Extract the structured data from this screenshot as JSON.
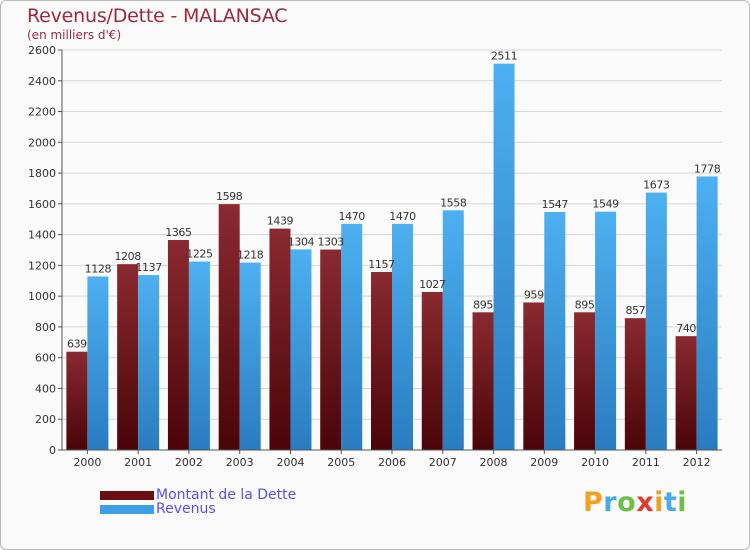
{
  "chart_data": {
    "type": "bar",
    "title": "Revenus/Dette - MALANSAC",
    "subtitle": "(en milliers d'€)",
    "categories": [
      "2000",
      "2001",
      "2002",
      "2003",
      "2004",
      "2005",
      "2006",
      "2007",
      "2008",
      "2009",
      "2010",
      "2011",
      "2012"
    ],
    "series": [
      {
        "name": "Montant de la Dette",
        "color": "#6b0f14",
        "values": [
          639,
          1208,
          1365,
          1598,
          1439,
          1303,
          1157,
          1027,
          895,
          959,
          895,
          857,
          740
        ],
        "labels": [
          "639",
          "1208",
          "1365",
          "1598",
          "1439",
          "1303",
          "1157",
          "1027",
          "895",
          "959",
          "895",
          "857",
          "740"
        ]
      },
      {
        "name": "Revenus",
        "color": "#3ea0e4",
        "values": [
          1128,
          1137,
          1225,
          1218,
          1304,
          1470,
          1470,
          1558,
          2511,
          1547,
          1549,
          1673,
          1778
        ],
        "labels": [
          "1128",
          "1137",
          "1225",
          "1218",
          "1304",
          "1470",
          "1470",
          "1558",
          "2511",
          "1547",
          "1549",
          "1673",
          "1778"
        ]
      }
    ],
    "ylim": [
      0,
      2600
    ],
    "yticks": [
      0,
      200,
      400,
      600,
      800,
      1000,
      1200,
      1400,
      1600,
      1800,
      2000,
      2200,
      2400,
      2600
    ],
    "grid": true,
    "legend_position": "bottom-left"
  },
  "branding": {
    "logo_letters": [
      "P",
      "r",
      "o",
      "x",
      "i",
      "t",
      "i"
    ],
    "logo_colors": [
      "#f2a01f",
      "#4aa9e6",
      "#6cc04a",
      "#e23a2e",
      "#f2a01f",
      "#4aa9e6",
      "#6cc04a"
    ]
  }
}
